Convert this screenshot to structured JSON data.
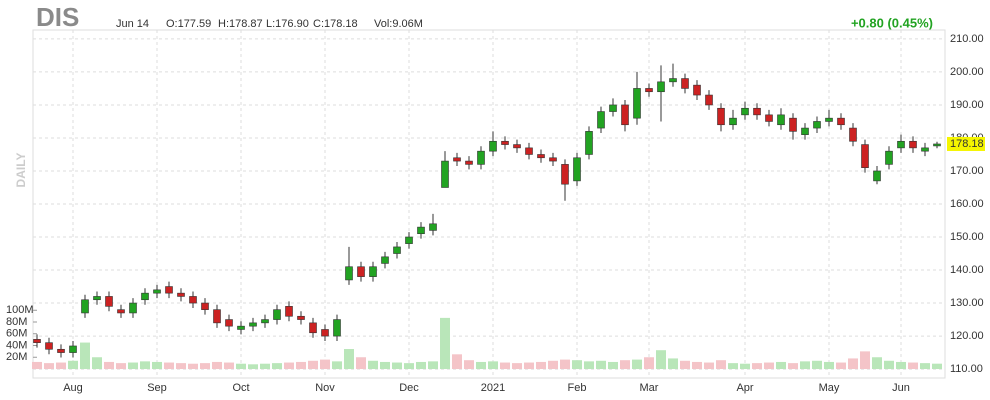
{
  "header": {
    "symbol": "DIS",
    "date": "Jun 14",
    "open": "O:177.59",
    "high": "H:178.87",
    "low": "L:176.90",
    "close": "C:178.18",
    "volume": "Vol:9.06M",
    "change": "+0.80 (0.45%)",
    "period": "DAILY"
  },
  "chart_data": {
    "type": "candlestick",
    "up_color": "#22a322",
    "down_color": "#cc2222",
    "up_volume_color": "#b9e6b9",
    "down_volume_color": "#f4c4c8",
    "grid": true,
    "categories": [
      null,
      null,
      null,
      "Aug",
      null,
      null,
      null,
      null,
      null,
      null,
      "Sep",
      null,
      null,
      null,
      null,
      null,
      null,
      "Oct",
      null,
      null,
      null,
      null,
      null,
      null,
      "Nov",
      null,
      null,
      null,
      null,
      null,
      null,
      "Dec",
      null,
      null,
      null,
      null,
      null,
      null,
      "2021",
      null,
      null,
      null,
      null,
      null,
      null,
      "Feb",
      null,
      null,
      null,
      null,
      null,
      "Mar",
      null,
      null,
      null,
      null,
      null,
      null,
      null,
      "Apr",
      null,
      null,
      null,
      null,
      null,
      null,
      "May",
      null,
      null,
      null,
      null,
      null,
      "Jun",
      null,
      null,
      null
    ],
    "open": [
      119,
      118,
      116,
      115,
      127,
      131,
      132,
      128,
      127,
      131,
      133,
      135,
      133,
      132,
      130,
      128,
      125,
      122,
      123,
      124,
      125,
      129,
      126,
      124,
      122,
      120,
      137,
      141,
      138,
      142,
      145,
      148,
      151,
      152,
      165,
      174,
      173,
      172,
      176,
      179,
      178,
      177,
      175,
      174,
      172,
      167,
      175,
      183,
      188,
      190,
      186,
      195,
      194,
      197,
      198,
      196,
      193,
      189,
      184,
      187,
      189,
      187,
      184,
      186,
      181,
      183,
      185,
      186,
      183,
      178,
      167,
      172,
      177,
      179,
      176,
      177.59
    ],
    "high": [
      120.5,
      119.5,
      117.5,
      118.5,
      132.5,
      133.5,
      133.5,
      129.5,
      131.5,
      134.5,
      135.5,
      136.5,
      134.5,
      133.5,
      131.5,
      129.5,
      126.5,
      124.5,
      125.5,
      126.5,
      129.5,
      130.5,
      127.5,
      125.5,
      123.5,
      126.5,
      147,
      142.5,
      142.5,
      145.5,
      148.5,
      151.5,
      154.5,
      157,
      176,
      175.5,
      174.5,
      177.5,
      182,
      180.5,
      179.5,
      178.5,
      176.5,
      175.5,
      173.5,
      175.5,
      183.5,
      189.5,
      192,
      191.5,
      200,
      196.5,
      202,
      202.5,
      199.5,
      197.5,
      194.5,
      190.5,
      188.5,
      191,
      190.5,
      188.5,
      189,
      187.5,
      184.5,
      186.5,
      188.5,
      187.5,
      184.5,
      179.5,
      171.5,
      177.5,
      181,
      180.5,
      178.5,
      178.87
    ],
    "low": [
      116.5,
      114.5,
      113.5,
      113.5,
      125.5,
      129.5,
      127.5,
      125.5,
      125.5,
      129.5,
      131.5,
      131.5,
      130.5,
      128.5,
      126.5,
      122.5,
      121.5,
      120.5,
      121.5,
      122.5,
      123.5,
      124.5,
      123.5,
      119.5,
      118.5,
      118.5,
      135.5,
      136.5,
      136.5,
      140.5,
      143.5,
      146.5,
      149.5,
      150.5,
      165,
      171.5,
      170.5,
      170.5,
      174.5,
      176.5,
      175.5,
      173.5,
      172.5,
      171.5,
      161,
      165.5,
      173.5,
      181.5,
      186.5,
      182,
      184,
      192.5,
      185,
      195.5,
      193.5,
      191.5,
      188.5,
      182,
      182.5,
      185.5,
      185.5,
      183.5,
      182.5,
      179.5,
      179.5,
      181.5,
      183.5,
      182.5,
      177.5,
      169.5,
      166,
      170.5,
      175.5,
      175.5,
      174.5,
      176.9
    ],
    "close": [
      118,
      116,
      115,
      117,
      131,
      132,
      129,
      127,
      130,
      133,
      134,
      133,
      132,
      130,
      128,
      124,
      123,
      123,
      124,
      125,
      128,
      126,
      125,
      121,
      120,
      125,
      141,
      138,
      141,
      144,
      147,
      150,
      153,
      154,
      173,
      173,
      172,
      176,
      179,
      178,
      177,
      175,
      174,
      173,
      166,
      174,
      182,
      188,
      190,
      184,
      195,
      194,
      197,
      198,
      195,
      193,
      190,
      184,
      186,
      189,
      187,
      185,
      187,
      182,
      183,
      185,
      186,
      184,
      179,
      171,
      170,
      176,
      179,
      177,
      177,
      178.18
    ],
    "volume": [
      12,
      10,
      11,
      14,
      45,
      20,
      12,
      10,
      11,
      13,
      12,
      11,
      10,
      9,
      10,
      12,
      11,
      9,
      8,
      9,
      10,
      11,
      12,
      14,
      16,
      13,
      34,
      20,
      14,
      12,
      11,
      10,
      12,
      13,
      87,
      25,
      15,
      12,
      13,
      11,
      10,
      11,
      12,
      14,
      16,
      15,
      13,
      14,
      12,
      15,
      16,
      20,
      32,
      18,
      14,
      12,
      11,
      15,
      10,
      9,
      10,
      11,
      12,
      10,
      13,
      14,
      12,
      11,
      18,
      30,
      20,
      14,
      12,
      11,
      10,
      9.06
    ],
    "ylim": [
      107.3,
      212.7
    ],
    "yticks": [
      {
        "value": 110,
        "label": "110.00"
      },
      {
        "value": 120,
        "label": "120.00"
      },
      {
        "value": 130,
        "label": "130.00"
      },
      {
        "value": 140,
        "label": "140.00"
      },
      {
        "value": 150,
        "label": "150.00"
      },
      {
        "value": 160,
        "label": "160.00"
      },
      {
        "value": 170,
        "label": "170.00"
      },
      {
        "value": 180,
        "label": "180.00"
      },
      {
        "value": 190,
        "label": "190.00"
      },
      {
        "value": 200,
        "label": "200.00"
      },
      {
        "value": 210,
        "label": "210.00"
      }
    ],
    "y2lim": [
      0,
      100
    ],
    "y2ticks": [
      {
        "value": 20,
        "label": "20M"
      },
      {
        "value": 40,
        "label": "40M"
      },
      {
        "value": 60,
        "label": "60M"
      },
      {
        "value": 80,
        "label": "80M"
      },
      {
        "value": 100,
        "label": "100M"
      }
    ]
  }
}
